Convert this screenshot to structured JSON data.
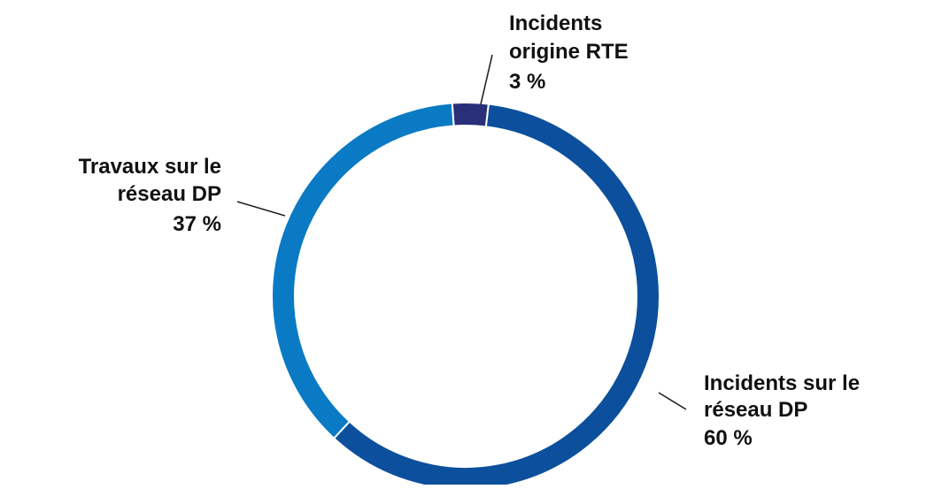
{
  "chart_data": {
    "type": "pie",
    "variant": "donut",
    "title": "",
    "slices": [
      {
        "key": "rte",
        "label_lines": [
          "Incidents",
          "origine RTE"
        ],
        "value": 3,
        "value_text": "3 %",
        "color": "#2a2f7a"
      },
      {
        "key": "incidents",
        "label_lines": [
          "Incidents sur le",
          "réseau DP"
        ],
        "value": 60,
        "value_text": "60 %",
        "color": "#0c4f9c"
      },
      {
        "key": "travaux",
        "label_lines": [
          "Travaux sur le",
          "réseau DP"
        ],
        "value": 37,
        "value_text": "37 %",
        "color": "#0a7ac4"
      }
    ],
    "legend": "none"
  }
}
